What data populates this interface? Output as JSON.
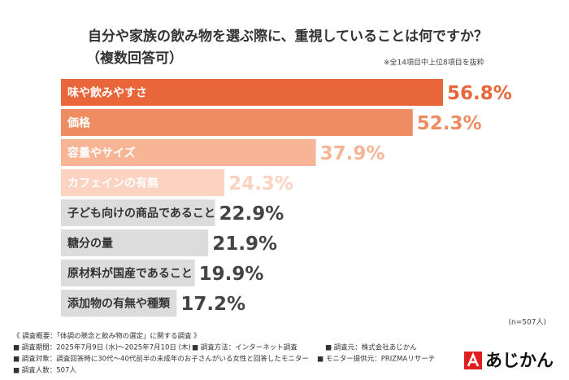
{
  "chart_data": {
    "type": "bar",
    "title": "自分や家族の飲み物を選ぶ際に、重視していることは何ですか？",
    "subtitle": "（複数回答可）",
    "note": "※全14項目中上位8項目を抜粋",
    "categories": [
      "味や飲みやすさ",
      "価格",
      "容量やサイズ",
      "カフェインの有無",
      "子ども向けの商品であること",
      "糖分の量",
      "原材料が国産であること",
      "添加物の有無や種類"
    ],
    "values": [
      56.8,
      52.3,
      37.9,
      24.3,
      22.9,
      21.9,
      19.9,
      17.2
    ],
    "value_labels": [
      "56.8%",
      "52.3%",
      "37.9%",
      "24.3%",
      "22.9%",
      "21.9%",
      "19.9%",
      "17.2%"
    ],
    "colors": [
      "#e8663a",
      "#f08c62",
      "#f7b596",
      "#fbd3c0",
      "#dcdcdc",
      "#dcdcdc",
      "#dcdcdc",
      "#dcdcdc"
    ],
    "sample_size": "(n=507人)"
  },
  "footnotes": [
    [
      "《 調査概要：「体調の懸念と飲み物の選定」に関する調査 》"
    ],
    [
      "■ 調査期間：2025年7月9日 (水)～2025年7月10日 (木)",
      "■ 調査方法：インターネット調査",
      "■ 調査元：株式会社あじかん"
    ],
    [
      "■ 調査対象：調査回答時に30代～40代前半の未成年のお子さんがいる女性と回答したモニター",
      "■ モニター提供元：PRIZMAリサーチ"
    ],
    [
      "■ 調査人数：507人"
    ]
  ],
  "brand": "あじかん"
}
